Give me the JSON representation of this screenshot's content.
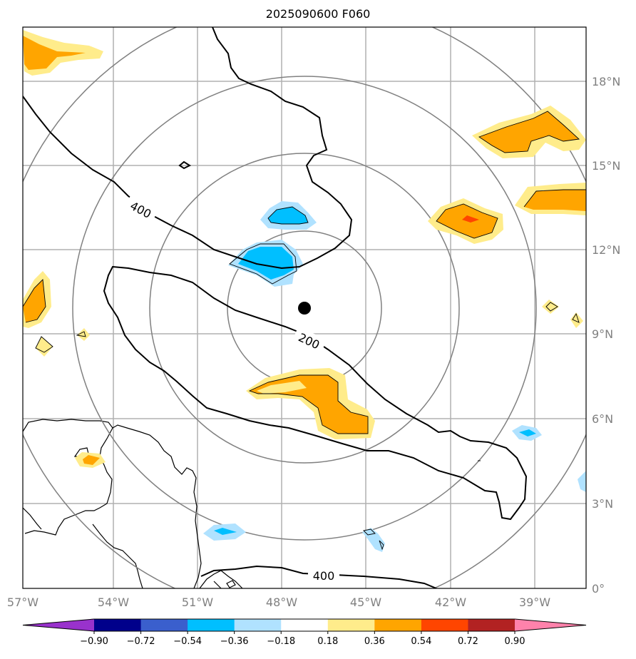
{
  "title": "2025090600 F060",
  "axes": {
    "lon_labels": [
      "57°W",
      "54°W",
      "51°W",
      "48°W",
      "45°W",
      "42°W",
      "39°W"
    ],
    "lat_labels": [
      "0°",
      "3°N",
      "6°N",
      "9°N",
      "12°N",
      "15°N",
      "18°N"
    ]
  },
  "contours": {
    "labels": [
      "400",
      "200",
      "400"
    ],
    "line_color": "#000000"
  },
  "range_rings": {
    "count": 4,
    "color": "#808080"
  },
  "center_marker": {
    "color": "#000000",
    "lon": -47.1,
    "lat": 9.9
  },
  "colorbar": {
    "tick_labels": [
      "−0.90",
      "−0.72",
      "−0.54",
      "−0.36",
      "−0.18",
      "0.18",
      "0.36",
      "0.54",
      "0.72",
      "0.90"
    ],
    "colors": [
      "#9932CC",
      "#00008B",
      "#3A5FCD",
      "#00BFFF",
      "#B0E2FF",
      "#FFFFFF",
      "#FFEC8B",
      "#FFA500",
      "#FF4500",
      "#B22222",
      "#FF82AB"
    ]
  },
  "fill_colors": {
    "pos_light": "#FFEC8B",
    "pos_mid": "#FFA500",
    "pos_strong": "#FF4500",
    "neg_light": "#B0E2FF",
    "neg_mid": "#00BFFF"
  }
}
